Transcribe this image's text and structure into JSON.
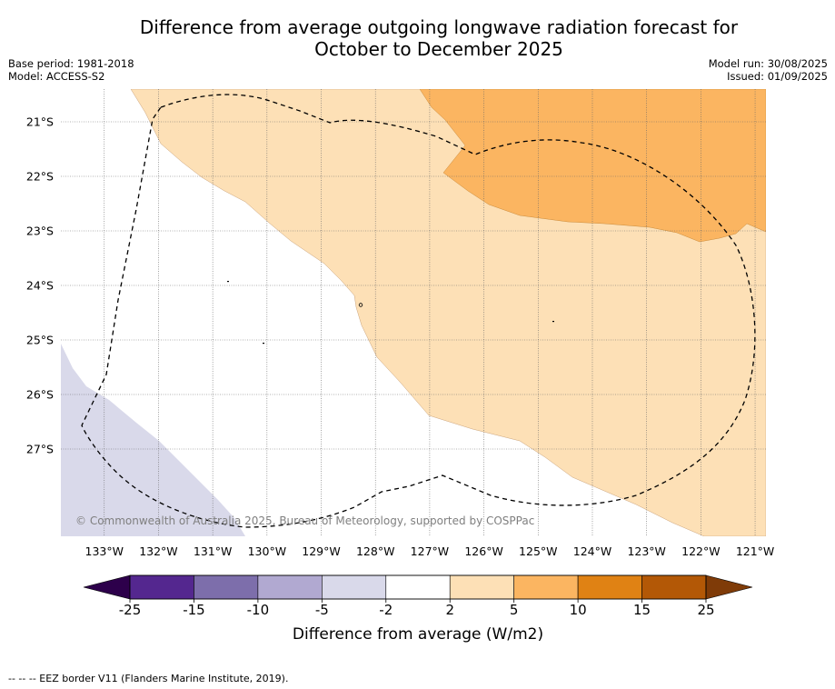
{
  "title_line1": "Difference from average outgoing longwave radiation forecast for",
  "title_line2": "October to December 2025",
  "base_period": "Base period: 1981-2018",
  "model": "Model: ACCESS-S2",
  "model_run": "Model run: 30/08/2025",
  "issued": "Issued: 01/09/2025",
  "copyright": "© Commonwealth of Australia 2025, Bureau of Meteorology, supported by COSPPac",
  "footnote": "-- -- -- EEZ border V11 (Flanders Marine Institute, 2019).",
  "map": {
    "lon_range": [
      -133.8,
      -120.8
    ],
    "lat_range": [
      -28.6,
      -20.4
    ],
    "lon_ticks": [
      "133°W",
      "132°W",
      "131°W",
      "130°W",
      "129°W",
      "128°W",
      "127°W",
      "126°W",
      "125°W",
      "124°W",
      "123°W",
      "122°W",
      "121°W"
    ],
    "lat_ticks": [
      "21°S",
      "22°S",
      "23°S",
      "24°S",
      "25°S",
      "26°S",
      "27°S"
    ],
    "gridlines": true,
    "regions": [
      {
        "category": "2 to 5",
        "color": "#fde0b6"
      },
      {
        "category": "5 to 10",
        "color": "#fbb561"
      },
      {
        "category": "-5 to -2",
        "color": "#d9d9ea"
      },
      {
        "category": "-2 to 2",
        "color": "#ffffff"
      }
    ],
    "eez_border": "dashed"
  },
  "colorbar": {
    "label": "Difference from average (W/m2)",
    "ticks": [
      "-25",
      "-15",
      "-10",
      "-5",
      "-2",
      "2",
      "5",
      "10",
      "15",
      "25"
    ],
    "colors": [
      "#54278f",
      "#7d6eab",
      "#b1a9d1",
      "#d9d9ea",
      "#ffffff",
      "#fde0b6",
      "#fbb561",
      "#e08214",
      "#b35806"
    ],
    "extend_min_color": "#2d004b",
    "extend_max_color": "#7f3b08"
  }
}
